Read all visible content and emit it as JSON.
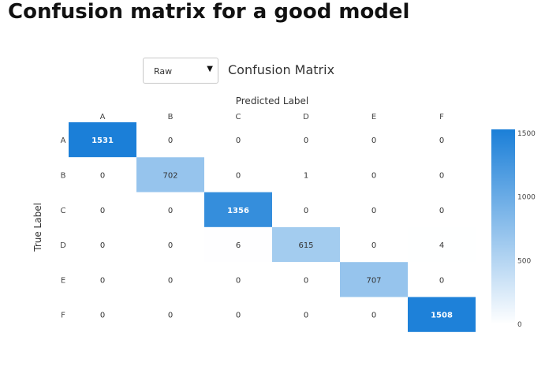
{
  "page": {
    "title": "Confusion matrix for a good model"
  },
  "controls": {
    "view_select_value": "Raw",
    "caret_icon": "▼"
  },
  "chart_data": {
    "type": "heatmap",
    "title": "Confusion Matrix",
    "xlabel": "Predicted Label",
    "ylabel": "True Label",
    "x_categories": [
      "A",
      "B",
      "C",
      "D",
      "E",
      "F"
    ],
    "y_categories": [
      "A",
      "B",
      "C",
      "D",
      "E",
      "F"
    ],
    "values": [
      [
        1531,
        0,
        0,
        0,
        0,
        0
      ],
      [
        0,
        702,
        0,
        1,
        0,
        0
      ],
      [
        0,
        0,
        1356,
        0,
        0,
        0
      ],
      [
        0,
        0,
        6,
        615,
        0,
        4
      ],
      [
        0,
        0,
        0,
        0,
        707,
        0
      ],
      [
        0,
        0,
        0,
        0,
        0,
        1508
      ]
    ],
    "colorscale": {
      "min": 0,
      "max": 1531,
      "low_color": "#ffffff",
      "high_color": "#1b7fd8"
    },
    "colorbar_ticks": [
      0,
      500,
      1000,
      1500
    ]
  }
}
